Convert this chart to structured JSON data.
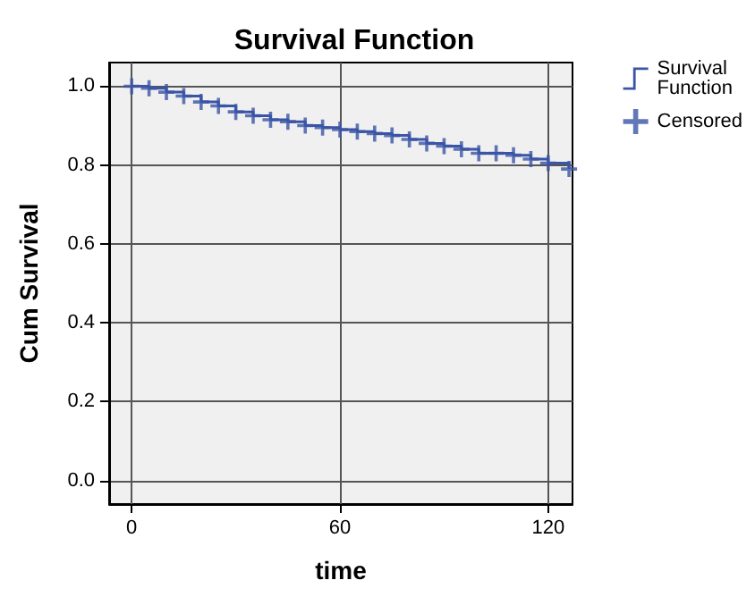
{
  "chart_data": {
    "type": "step",
    "title": "Survival Function",
    "xlabel": "time",
    "ylabel": "Cum Survival",
    "x": [
      0,
      5,
      10,
      15,
      20,
      25,
      30,
      35,
      40,
      45,
      50,
      55,
      60,
      65,
      70,
      75,
      80,
      85,
      90,
      95,
      100,
      105,
      110,
      115,
      120,
      126
    ],
    "series": [
      {
        "name": "Survival Function",
        "color": "#3b55a6",
        "values": [
          1.0,
          0.995,
          0.985,
          0.975,
          0.96,
          0.95,
          0.935,
          0.925,
          0.915,
          0.91,
          0.9,
          0.895,
          0.89,
          0.885,
          0.88,
          0.875,
          0.865,
          0.855,
          0.848,
          0.84,
          0.83,
          0.83,
          0.825,
          0.815,
          0.805,
          0.79
        ]
      },
      {
        "name": "Censored",
        "type": "scatter",
        "marker": "cross",
        "color": "#3b55a6",
        "values": [
          1.0,
          0.995,
          0.985,
          0.975,
          0.96,
          0.95,
          0.935,
          0.925,
          0.915,
          0.91,
          0.9,
          0.895,
          0.89,
          0.885,
          0.88,
          0.875,
          0.865,
          0.855,
          0.848,
          0.84,
          0.83,
          0.83,
          0.825,
          0.815,
          0.805,
          0.79
        ]
      }
    ],
    "xlim": [
      -6.5,
      127
    ],
    "xticks": [
      0,
      60,
      120
    ],
    "ylim": [
      -0.06,
      1.06
    ],
    "yticks": [
      {
        "value": 0,
        "label": "0.0"
      },
      {
        "value": 0.2,
        "label": "0.2"
      },
      {
        "value": 0.4,
        "label": "0.4"
      },
      {
        "value": 0.6,
        "label": "0.6"
      },
      {
        "value": 0.8,
        "label": "0.8"
      },
      {
        "value": 1,
        "label": "1.0"
      }
    ],
    "grid": true,
    "legend": "right"
  }
}
